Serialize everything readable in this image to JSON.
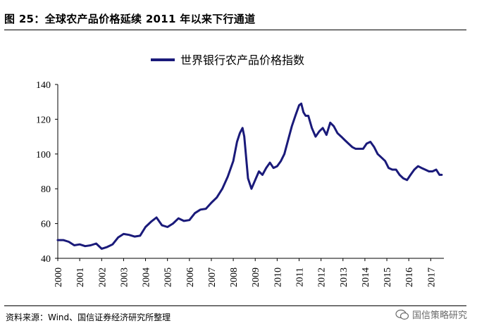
{
  "header": {
    "title": "图 25：全球农产品价格延续 2011 年以来下行通道"
  },
  "footer": {
    "source": "资料来源：Wind、国信证券经济研究所整理",
    "watermark": "国信策略研究"
  },
  "colors": {
    "line": "#1a1a7a",
    "axis": "#000000"
  },
  "chart_data": {
    "type": "line",
    "title": "",
    "xlabel": "",
    "ylabel": "",
    "legend": [
      "世界银行农产品价格指数"
    ],
    "legend_position": "top-center",
    "ylim": [
      40,
      140
    ],
    "yticks": [
      "40",
      "60",
      "80",
      "100",
      "120",
      "140"
    ],
    "xlim": [
      2000.0,
      2017.6
    ],
    "xticks": [
      "2000",
      "2001",
      "2002",
      "2003",
      "2004",
      "2005",
      "2006",
      "2007",
      "2008",
      "2009",
      "2010",
      "2011",
      "2012",
      "2013",
      "2014",
      "2015",
      "2016",
      "2017"
    ],
    "series": [
      {
        "name": "世界银行农产品价格指数",
        "x": [
          2000.0,
          2000.25,
          2000.5,
          2000.75,
          2001.0,
          2001.25,
          2001.5,
          2001.75,
          2002.0,
          2002.25,
          2002.5,
          2002.75,
          2003.0,
          2003.25,
          2003.5,
          2003.75,
          2004.0,
          2004.25,
          2004.5,
          2004.75,
          2005.0,
          2005.25,
          2005.5,
          2005.75,
          2006.0,
          2006.25,
          2006.5,
          2006.75,
          2007.0,
          2007.25,
          2007.5,
          2007.75,
          2008.0,
          2008.17,
          2008.3,
          2008.42,
          2008.5,
          2008.67,
          2008.83,
          2009.0,
          2009.17,
          2009.33,
          2009.5,
          2009.67,
          2009.83,
          2010.0,
          2010.17,
          2010.33,
          2010.5,
          2010.67,
          2010.83,
          2011.0,
          2011.1,
          2011.2,
          2011.3,
          2011.42,
          2011.58,
          2011.75,
          2011.92,
          2012.08,
          2012.25,
          2012.42,
          2012.58,
          2012.75,
          2012.92,
          2013.08,
          2013.25,
          2013.42,
          2013.58,
          2013.75,
          2013.92,
          2014.08,
          2014.25,
          2014.42,
          2014.58,
          2014.75,
          2014.92,
          2015.08,
          2015.25,
          2015.42,
          2015.58,
          2015.75,
          2015.92,
          2016.08,
          2016.25,
          2016.42,
          2016.58,
          2016.75,
          2016.92,
          2017.08,
          2017.25,
          2017.4,
          2017.5
        ],
        "values": [
          50.5,
          50.5,
          49.5,
          47.5,
          48,
          47,
          47.5,
          48.5,
          45.5,
          46.5,
          48,
          52,
          54,
          53.5,
          52.5,
          53,
          58,
          61,
          63.5,
          59,
          58,
          60,
          63,
          61.5,
          62,
          66,
          68,
          68.5,
          72,
          75,
          80,
          87,
          96,
          107,
          112,
          115,
          110,
          86,
          80,
          85,
          90,
          88,
          92,
          95,
          92,
          93,
          96,
          100,
          108,
          116,
          122,
          128,
          129,
          124,
          122,
          122,
          115,
          110,
          113,
          115,
          111,
          118,
          116,
          112,
          110,
          108,
          106,
          104,
          103,
          103,
          103,
          106,
          107,
          104,
          100,
          98,
          96,
          92,
          91,
          91,
          88,
          86,
          85,
          88,
          91,
          93,
          92,
          91,
          90,
          90,
          91,
          88,
          88
        ]
      }
    ]
  }
}
